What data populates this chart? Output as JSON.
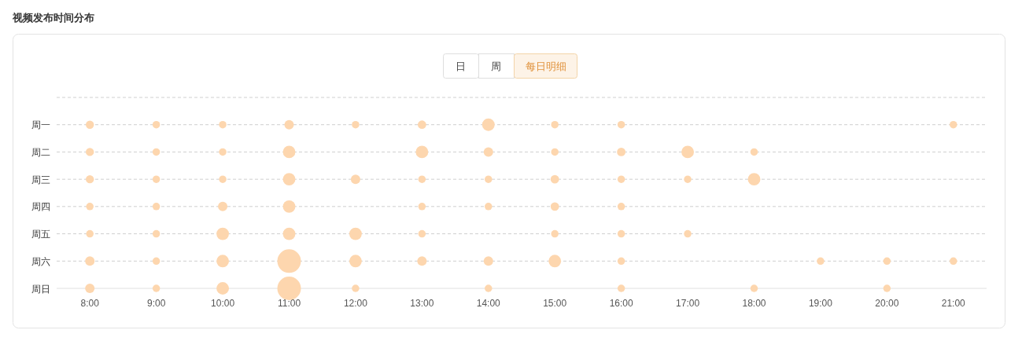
{
  "chart_data": {
    "type": "bubble",
    "orientation": "horizontal",
    "title": "视频发布时间分布",
    "annotations": [
      "日",
      "周",
      "每日明细"
    ],
    "categories": [
      null,
      "周一",
      "周二",
      "周三",
      "周四",
      "周五",
      "周六",
      "周日"
    ],
    "xlim": [
      7.5,
      21.5
    ],
    "xticks": [
      {
        "value": 8,
        "label": "8:00"
      },
      {
        "value": 9,
        "label": "9:00"
      },
      {
        "value": 10,
        "label": "10:00"
      },
      {
        "value": 11,
        "label": "11:00"
      },
      {
        "value": 12,
        "label": "12:00"
      },
      {
        "value": 13,
        "label": "13:00"
      },
      {
        "value": 14,
        "label": "14:00"
      },
      {
        "value": 15,
        "label": "15:00"
      },
      {
        "value": 16,
        "label": "16:00"
      },
      {
        "value": 17,
        "label": "17:00"
      },
      {
        "value": 18,
        "label": "18:00"
      },
      {
        "value": 19,
        "label": "19:00"
      },
      {
        "value": 20,
        "label": "20:00"
      },
      {
        "value": 21,
        "label": "21:00"
      }
    ],
    "grid": "y",
    "series": [
      {
        "color": "#fdd6ae",
        "values": [
          null,
          8,
          8,
          8,
          8,
          8,
          8,
          8
        ],
        "sizes": [
          null,
          0.12,
          0.12,
          0.12,
          0.1,
          0.1,
          0.16,
          0.16
        ]
      },
      {
        "color": "#fdd6ae",
        "values": [
          null,
          9,
          9,
          9,
          9,
          9,
          9,
          9
        ],
        "sizes": [
          null,
          0.1,
          0.1,
          0.1,
          0.1,
          0.1,
          0.1,
          0.1
        ]
      },
      {
        "color": "#fdd6ae",
        "values": [
          null,
          10,
          10,
          10,
          10,
          10,
          10,
          10
        ],
        "sizes": [
          null,
          0.1,
          0.1,
          0.1,
          0.16,
          0.28,
          0.28,
          0.28
        ]
      },
      {
        "color": "#fdd6ae",
        "values": [
          null,
          11,
          11,
          11,
          11,
          11,
          11,
          11
        ],
        "sizes": [
          null,
          0.16,
          0.28,
          0.28,
          0.28,
          0.28,
          1,
          1
        ]
      },
      {
        "color": "#fdd6ae",
        "values": [
          null,
          12,
          null,
          12,
          null,
          12,
          12,
          12
        ],
        "sizes": [
          null,
          0.1,
          null,
          0.16,
          null,
          0.28,
          0.28,
          0.1
        ]
      },
      {
        "color": "#fdd6ae",
        "values": [
          null,
          13,
          13,
          13,
          13,
          13,
          13,
          null
        ],
        "sizes": [
          null,
          0.13,
          0.28,
          0.1,
          0.1,
          0.1,
          0.16,
          null
        ]
      },
      {
        "color": "#fdd6ae",
        "values": [
          null,
          14,
          14,
          14,
          14,
          null,
          14,
          14
        ],
        "sizes": [
          null,
          0.28,
          0.16,
          0.1,
          0.1,
          null,
          0.16,
          0.1
        ]
      },
      {
        "color": "#fdd6ae",
        "values": [
          null,
          15,
          15,
          15,
          15,
          15,
          15,
          null
        ],
        "sizes": [
          null,
          0.1,
          0.1,
          0.13,
          0.13,
          0.1,
          0.28,
          null
        ]
      },
      {
        "color": "#fdd6ae",
        "values": [
          null,
          16,
          16,
          16,
          16,
          16,
          16,
          16
        ],
        "sizes": [
          null,
          0.1,
          0.13,
          0.1,
          0.1,
          0.1,
          0.1,
          0.1
        ]
      },
      {
        "color": "#fdd6ae",
        "values": [
          null,
          null,
          17,
          17,
          null,
          17,
          null,
          null
        ],
        "sizes": [
          null,
          null,
          0.28,
          0.1,
          null,
          0.1,
          null,
          null
        ]
      },
      {
        "color": "#fdd6ae",
        "values": [
          null,
          null,
          18,
          18,
          null,
          null,
          null,
          18
        ],
        "sizes": [
          null,
          null,
          0.1,
          0.28,
          null,
          null,
          null,
          0.1
        ]
      },
      {
        "color": "#fdd6ae",
        "values": [
          null,
          null,
          null,
          null,
          null,
          null,
          19,
          null
        ],
        "sizes": [
          null,
          null,
          null,
          null,
          null,
          null,
          0.1,
          null
        ]
      },
      {
        "color": "#fdd6ae",
        "values": [
          null,
          null,
          null,
          null,
          null,
          null,
          20,
          20
        ],
        "sizes": [
          null,
          null,
          null,
          null,
          null,
          null,
          0.1,
          0.1
        ]
      },
      {
        "color": "#fdd6ae",
        "values": [
          null,
          21,
          null,
          null,
          null,
          null,
          21,
          null
        ],
        "sizes": [
          null,
          0.1,
          null,
          null,
          null,
          null,
          0.1,
          null
        ]
      }
    ]
  }
}
